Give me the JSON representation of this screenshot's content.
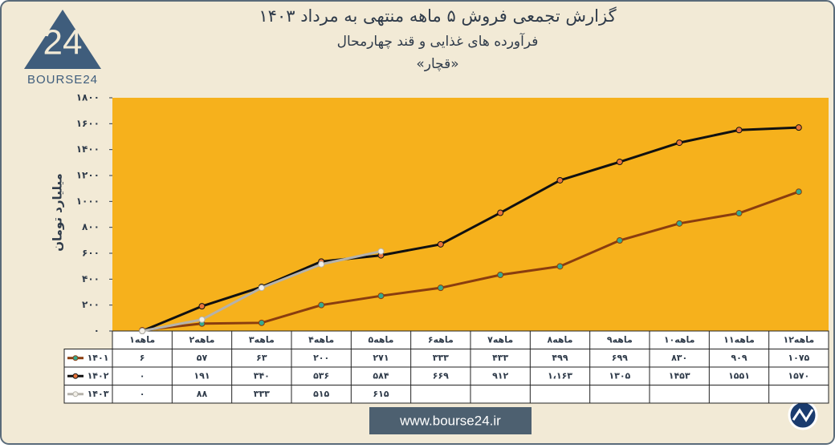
{
  "logo_number": "24",
  "logo_text": "BOURSE24",
  "footer": "www.bourse24.ir",
  "chart_data": {
    "type": "line",
    "title": "گزارش تجمعی فروش ۵ ماهه منتهی به مرداد ۱۴۰۳",
    "subtitle": "فرآورده های غذایی و قند چهارمحال",
    "annotation": "«قچار»",
    "y_label": "میلیارد تومان",
    "categories": [
      "۱ماهه",
      "۲ماهه",
      "۳ماهه",
      "۴ماهه",
      "۵ماهه",
      "۶ماهه",
      "۷ماهه",
      "۸ماهه",
      "۹ماهه",
      "۱۰ماهه",
      "۱۱ماهه",
      "۱۲ماهه"
    ],
    "ylim": [
      0,
      1800
    ],
    "yticks": [
      {
        "value": 0,
        "label": "۰"
      },
      {
        "value": 200,
        "label": "۲۰۰"
      },
      {
        "value": 400,
        "label": "۴۰۰"
      },
      {
        "value": 600,
        "label": "۶۰۰"
      },
      {
        "value": 800,
        "label": "۸۰۰"
      },
      {
        "value": 1000,
        "label": "۱۰۰۰"
      },
      {
        "value": 1200,
        "label": "۱۲۰۰"
      },
      {
        "value": 1400,
        "label": "۱۴۰۰"
      },
      {
        "value": 1600,
        "label": "۱۶۰۰"
      },
      {
        "value": 1800,
        "label": "۱۸۰۰"
      }
    ],
    "grid": false,
    "plot_color": "#f6b11c",
    "series": [
      {
        "name": "۱۴۰۱",
        "color": "#8a3d0f",
        "marker_color": "#35a98f",
        "values": [
          6,
          57,
          63,
          200,
          271,
          333,
          433,
          499,
          699,
          830,
          909,
          1075
        ],
        "value_labels": [
          "۶",
          "۵۷",
          "۶۳",
          "۲۰۰",
          "۲۷۱",
          "۳۳۳",
          "۴۳۳",
          "۴۹۹",
          "۶۹۹",
          "۸۳۰",
          "۹۰۹",
          "۱۰۷۵"
        ]
      },
      {
        "name": "۱۴۰۲",
        "color": "#111111",
        "marker_color": "#e8743b",
        "values": [
          0,
          191,
          340,
          536,
          584,
          669,
          912,
          1163,
          1305,
          1453,
          1551,
          1570
        ],
        "value_labels": [
          "۰",
          "۱۹۱",
          "۳۴۰",
          "۵۳۶",
          "۵۸۴",
          "۶۶۹",
          "۹۱۲",
          "۱،۱۶۳",
          "۱۳۰۵",
          "۱۴۵۳",
          "۱۵۵۱",
          "۱۵۷۰"
        ]
      },
      {
        "name": "۱۴۰۳",
        "color": "#b5b2ab",
        "marker_color": "#f2efe8",
        "values": [
          0,
          88,
          333,
          515,
          615,
          null,
          null,
          null,
          null,
          null,
          null,
          null
        ],
        "value_labels": [
          "۰",
          "۸۸",
          "۳۳۳",
          "۵۱۵",
          "۶۱۵",
          null,
          null,
          null,
          null,
          null,
          null,
          null
        ]
      }
    ]
  }
}
